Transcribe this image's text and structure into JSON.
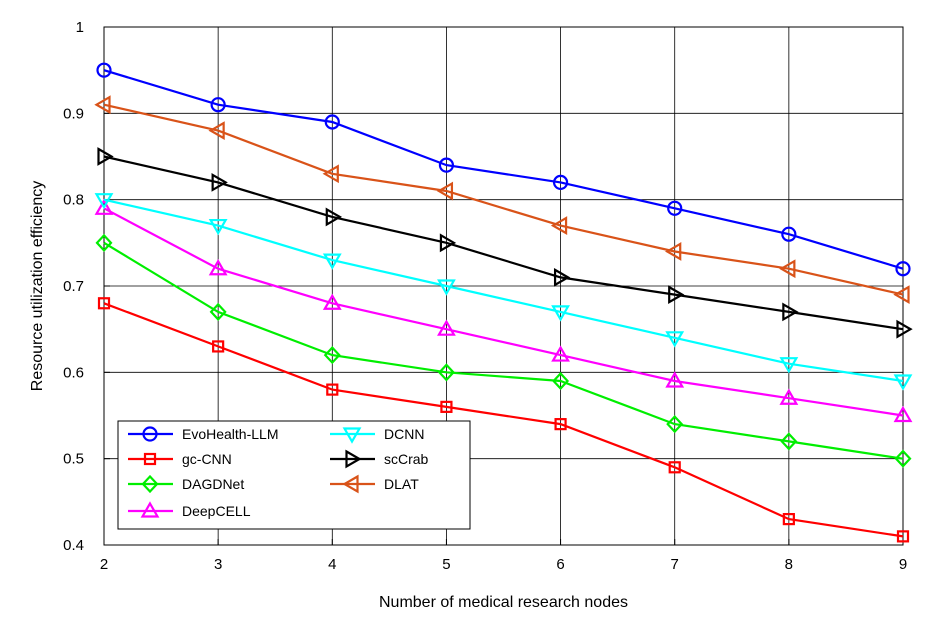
{
  "chart_data": {
    "type": "line",
    "title": "",
    "xlabel": "Number of medical research nodes",
    "ylabel": "Resource utilization efficiency",
    "x": [
      2,
      3,
      4,
      5,
      6,
      7,
      8,
      9
    ],
    "xlim": [
      2,
      9
    ],
    "ylim": [
      0.4,
      1.0
    ],
    "yticks": [
      "0.4",
      "0.5",
      "0.6",
      "0.7",
      "0.8",
      "0.9",
      "1"
    ],
    "xticks": [
      "2",
      "3",
      "4",
      "5",
      "6",
      "7",
      "8",
      "9"
    ],
    "grid": true,
    "legend_position": "bottom-left",
    "series": [
      {
        "name": "EvoHealth-LLM",
        "color": "#0000ff",
        "marker": "circle",
        "values": [
          0.95,
          0.91,
          0.89,
          0.84,
          0.82,
          0.79,
          0.76,
          0.72
        ]
      },
      {
        "name": "gc-CNN",
        "color": "#ff0000",
        "marker": "square",
        "values": [
          0.68,
          0.63,
          0.58,
          0.56,
          0.54,
          0.49,
          0.43,
          0.41
        ]
      },
      {
        "name": "DAGDNet",
        "color": "#00ee00",
        "marker": "diamond",
        "values": [
          0.75,
          0.67,
          0.62,
          0.6,
          0.59,
          0.54,
          0.52,
          0.5
        ]
      },
      {
        "name": "DeepCELL",
        "color": "#ff00ff",
        "marker": "triangle-up",
        "values": [
          0.79,
          0.72,
          0.68,
          0.65,
          0.62,
          0.59,
          0.57,
          0.55
        ]
      },
      {
        "name": "DCNN",
        "color": "#00ffff",
        "marker": "triangle-down",
        "values": [
          0.8,
          0.77,
          0.73,
          0.7,
          0.67,
          0.64,
          0.61,
          0.59
        ]
      },
      {
        "name": "scCrab",
        "color": "#000000",
        "marker": "triangle-right",
        "values": [
          0.85,
          0.82,
          0.78,
          0.75,
          0.71,
          0.69,
          0.67,
          0.65
        ]
      },
      {
        "name": "DLAT",
        "color": "#d95319",
        "marker": "triangle-left",
        "values": [
          0.91,
          0.88,
          0.83,
          0.81,
          0.77,
          0.74,
          0.72,
          0.69
        ]
      }
    ]
  }
}
